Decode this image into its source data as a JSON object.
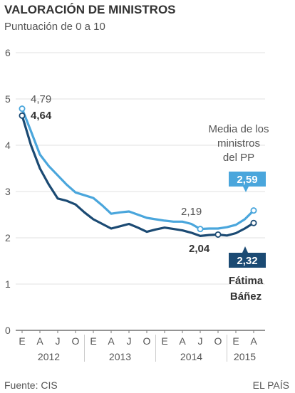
{
  "header": {
    "title": "VALORACIÓN DE MINISTROS",
    "subtitle": "Puntuación de 0 a 10"
  },
  "footer": {
    "source": "Fuente: CIS",
    "brand": "EL PAÍS"
  },
  "chart_data": {
    "type": "line",
    "ylim": [
      0,
      6
    ],
    "y_ticks": [
      "0",
      "1",
      "2",
      "3",
      "4",
      "5",
      "6"
    ],
    "x_ticks": [
      "E",
      "A",
      "J",
      "O",
      "E",
      "A",
      "J",
      "O",
      "E",
      "A",
      "J",
      "O",
      "E",
      "A"
    ],
    "x_groups": [
      {
        "label": "2012",
        "span": [
          0,
          3
        ]
      },
      {
        "label": "2013",
        "span": [
          4,
          7
        ]
      },
      {
        "label": "2014",
        "span": [
          8,
          11
        ]
      },
      {
        "label": "2015",
        "span": [
          12,
          13
        ]
      }
    ],
    "grid": true,
    "series": [
      {
        "name": "Media de los ministros del PP",
        "color": "#4aa6dc",
        "x": [
          0,
          0.5,
          1,
          1.5,
          2,
          2.5,
          3,
          3.5,
          4,
          4.5,
          5,
          5.5,
          6,
          6.5,
          7,
          7.5,
          8,
          8.5,
          9,
          9.5,
          10,
          10.5,
          11,
          11.5,
          12,
          12.5,
          13
        ],
        "values": [
          4.79,
          4.3,
          3.8,
          3.55,
          3.35,
          3.15,
          2.98,
          2.92,
          2.86,
          2.7,
          2.52,
          2.55,
          2.57,
          2.5,
          2.43,
          2.4,
          2.37,
          2.35,
          2.35,
          2.3,
          2.19,
          2.2,
          2.2,
          2.23,
          2.28,
          2.4,
          2.59
        ]
      },
      {
        "name": "Fátima Báñez",
        "color": "#1b4a73",
        "x": [
          0,
          0.5,
          1,
          1.5,
          2,
          2.5,
          3,
          3.5,
          4,
          4.5,
          5,
          5.5,
          6,
          6.5,
          7,
          7.5,
          8,
          8.5,
          9,
          9.5,
          10,
          10.5,
          11,
          11.5,
          12,
          12.5,
          13
        ],
        "values": [
          4.64,
          4.0,
          3.5,
          3.15,
          2.85,
          2.8,
          2.72,
          2.55,
          2.4,
          2.3,
          2.2,
          2.25,
          2.3,
          2.22,
          2.13,
          2.18,
          2.22,
          2.19,
          2.16,
          2.11,
          2.04,
          2.06,
          2.07,
          2.05,
          2.1,
          2.2,
          2.32
        ]
      }
    ],
    "annotations": [
      {
        "series": 0,
        "x": 0,
        "value": "4,79",
        "style": "plain"
      },
      {
        "series": 1,
        "x": 0,
        "value": "4,64",
        "style": "bold"
      },
      {
        "series": 0,
        "x": 10,
        "value": "2,19",
        "style": "plain"
      },
      {
        "series": 1,
        "x": 11,
        "value": "2,04",
        "style": "bold"
      },
      {
        "series": 0,
        "x": 13,
        "value": "2,59",
        "style": "box"
      },
      {
        "series": 1,
        "x": 13,
        "value": "2,32",
        "style": "box"
      }
    ],
    "labels": {
      "pp_lines": [
        "Media de los",
        "ministros",
        "del PP"
      ],
      "banez_lines": [
        "Fátima",
        "Báñez"
      ]
    }
  }
}
